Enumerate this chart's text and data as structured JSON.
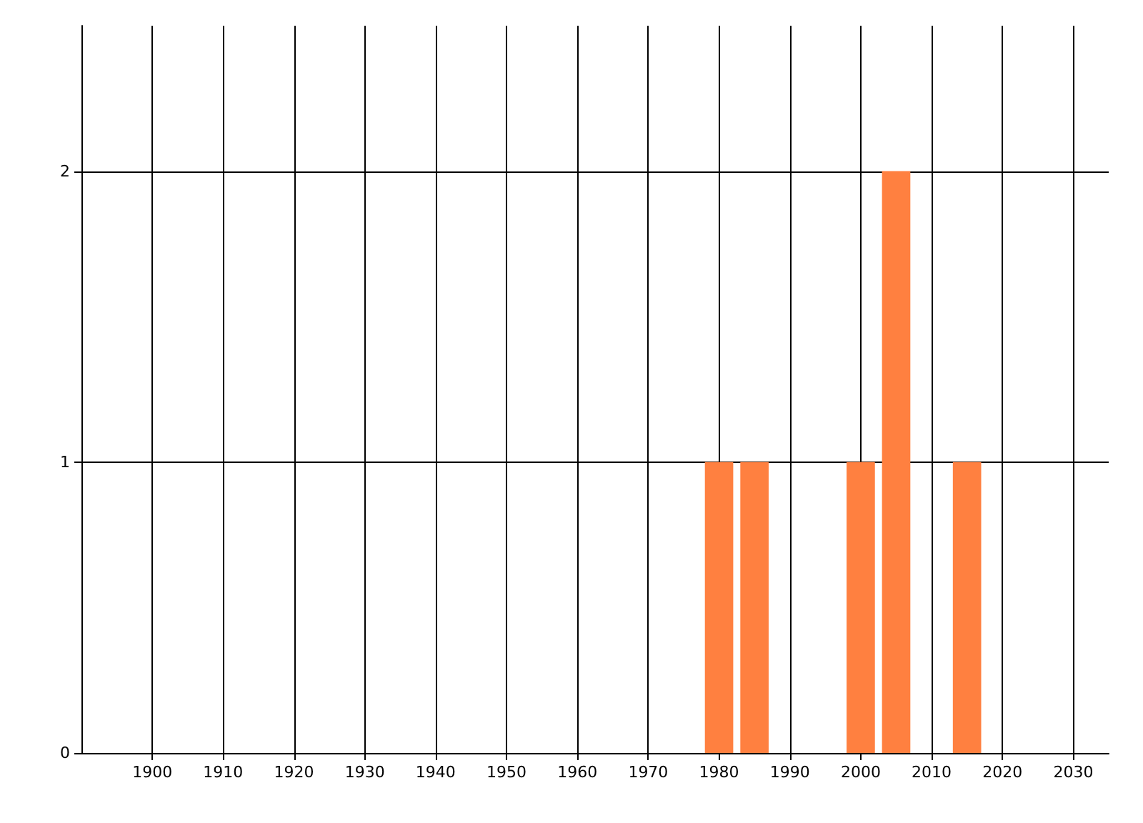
{
  "chart_data": {
    "type": "bar",
    "x": [
      1980,
      1985,
      2000,
      2005,
      2015
    ],
    "values": [
      1,
      1,
      1,
      2,
      1
    ],
    "color": "#ff8040",
    "xlim": [
      1890,
      2035
    ],
    "xticks": [
      1900,
      1910,
      1920,
      1930,
      1940,
      1950,
      1960,
      1970,
      1980,
      1990,
      2000,
      2010,
      2020,
      2030
    ],
    "ylim": [
      0,
      2.5
    ],
    "yticks": [
      0,
      1,
      2
    ],
    "grid": true
  }
}
